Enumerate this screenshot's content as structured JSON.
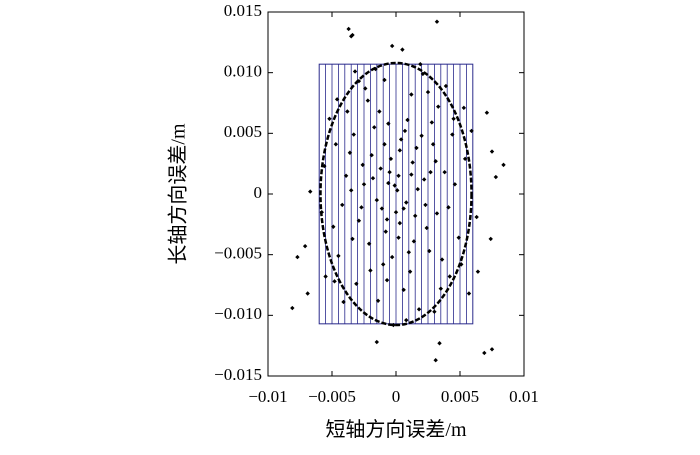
{
  "chart_data": {
    "type": "scatter",
    "x_label": "短轴方向误差/m",
    "y_label": "长轴方向误差/m",
    "xlim": [
      -0.01,
      0.01
    ],
    "ylim": [
      -0.015,
      0.015
    ],
    "xticks": [
      {
        "value": -0.01,
        "label": "−0.01"
      },
      {
        "value": -0.005,
        "label": "−0.005"
      },
      0,
      0.005,
      0.01
    ],
    "yticks": [
      {
        "value": -0.015,
        "label": "−0.015"
      },
      {
        "value": -0.01,
        "label": "−0.010"
      },
      {
        "value": -0.005,
        "label": "−0.005"
      },
      0,
      0.005,
      {
        "value": 0.01,
        "label": "0.010"
      },
      0.015
    ],
    "color": "#000000",
    "rectangle": {
      "x": [
        -0.006,
        0.006
      ],
      "y": [
        -0.0107,
        0.0107
      ],
      "color": "#2a2a8c"
    },
    "ellipse": {
      "rx": 0.0059,
      "ry": 0.0108,
      "color": "#000000"
    },
    "x": [
      -0.0034,
      -0.0037,
      -0.0035,
      0.0032,
      -0.0003,
      0.0071,
      0.0059,
      0.0084,
      0.0075,
      -0.0056,
      -0.0067,
      -0.0077,
      -0.0081,
      -0.0069,
      0.0075,
      0.0069,
      0.0034,
      0.0031,
      -0.0015,
      0.0064,
      0.0074,
      0.0078,
      0.0063,
      -0.0071,
      0.0001,
      -0.0012,
      0.0015,
      -0.0008,
      0.0022,
      -0.0025,
      0.0004,
      -0.0003,
      0.0031,
      -0.0029,
      0.0009,
      -0.0017,
      0.0026,
      -0.0036,
      0.0041,
      -0.0042,
      0.0012,
      -0.0009,
      0.0021,
      -0.0024,
      0.0006,
      -0.0014,
      0.0018,
      0.0033,
      -0.0038,
      0.0044,
      -0.0047,
      0.0049,
      -0.0045,
      0.0035,
      -0.0031,
      0.0002,
      -0.0006,
      0.0008,
      -0.0011,
      0.0013,
      -0.0019,
      0.0016,
      -0.0004,
      0.0003,
      -0.0021,
      0.0024,
      0.0007,
      -0.0013,
      0.0028,
      -0.0033,
      0.0038,
      -0.0039,
      0.0046,
      -0.0049,
      0.0051,
      -0.0052,
      0.0053,
      -0.0055,
      0.0011,
      -0.0007,
      0.0019,
      -0.0016,
      0.0039,
      -0.0041,
      0.0005,
      0.0008,
      -0.0002,
      0.0027,
      -0.0026,
      0.0014,
      -0.0015,
      0,
      0.0003,
      -0.0005,
      0.0017,
      -0.0018,
      0.0023,
      -0.0027,
      0.0029,
      -0.0034,
      0.0036,
      -0.0009,
      0.001,
      -0.0022,
      0.0025,
      -0.0029,
      0.0042,
      -0.0046,
      0.0054,
      -0.0058,
      0.0057,
      -0.0006,
      0.0002,
      -0.001,
      0.0012,
      -0.0001,
      0.0006,
      -0.0007,
      0.002,
      -0.002,
      0.0032,
      -0.0035,
      0.0045,
      -0.0048,
      0.003,
      -0.0032
    ],
    "values": [
      0.0131,
      0.0136,
      0.013,
      0.0142,
      0.0122,
      0.0067,
      0.0052,
      0.0024,
      0.0035,
      0.0023,
      0.0002,
      -0.0052,
      -0.0094,
      -0.0082,
      -0.0128,
      -0.0131,
      -0.0123,
      -0.0137,
      -0.0122,
      -0.0064,
      -0.0037,
      0.0014,
      -0.0019,
      -0.0043,
      0.0003,
      0.0021,
      -0.0018,
      -0.0031,
      0.0012,
      0.0008,
      0.0045,
      -0.0052,
      0.0027,
      -0.0022,
      0.0061,
      0.0055,
      -0.0047,
      0.0034,
      -0.0011,
      -0.0009,
      0.0082,
      0.0094,
      0.0099,
      0.0087,
      -0.0079,
      -0.0088,
      -0.0095,
      0.0072,
      0.0068,
      0.0049,
      0.0041,
      -0.0036,
      -0.0051,
      -0.0078,
      -0.0074,
      0.0015,
      0.0009,
      -0.0007,
      -0.0012,
      0.0026,
      0.0032,
      0.0038,
      0.0029,
      -0.0024,
      -0.0041,
      -0.0028,
      0.0052,
      0.0068,
      0.0059,
      0.0049,
      0.0018,
      0.0015,
      0.0008,
      -0.0027,
      -0.0058,
      0.0062,
      0.0071,
      -0.0068,
      -0.0064,
      -0.0071,
      0.0107,
      0.0103,
      0.0089,
      -0.0089,
      0.0119,
      -0.0104,
      -0.0108,
      0.0018,
      0.0024,
      -0.0039,
      -0.0005,
      -0.0015,
      0.0036,
      0.0018,
      0.0004,
      0.0013,
      -0.0009,
      -0.0011,
      0.0041,
      -0.0037,
      -0.0054,
      0.0041,
      -0.0048,
      0.0077,
      0.0084,
      0.0093,
      -0.0068,
      0.0078,
      0.0029,
      -0.0015,
      -0.0082,
      0.0058,
      -0.0036,
      -0.0058,
      0.0016,
      0.0007,
      -0.0012,
      -0.0021,
      0.0048,
      -0.0063,
      -0.0016,
      0.0003,
      0.0062,
      -0.0072,
      -0.0097,
      0.0101
    ]
  }
}
